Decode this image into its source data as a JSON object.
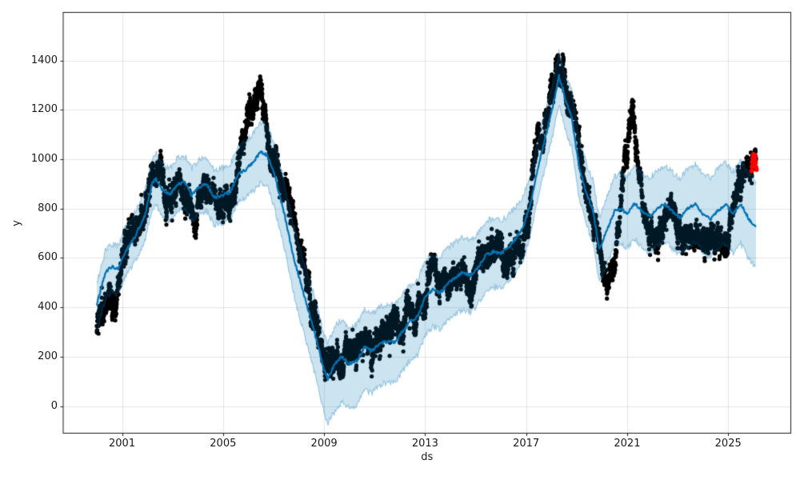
{
  "chart_data": {
    "type": "scatter",
    "title": "",
    "xlabel": "ds",
    "ylabel": "y",
    "grid": true,
    "legend": "none",
    "x_range": [
      1998.67,
      2027.48
    ],
    "y_range": [
      -110,
      1595
    ],
    "x_tick_values": [
      2001,
      2005,
      2009,
      2013,
      2017,
      2021,
      2025
    ],
    "x_tick_labels": [
      "2001",
      "2005",
      "2009",
      "2013",
      "2017",
      "2021",
      "2025"
    ],
    "y_tick_values": [
      0,
      200,
      400,
      600,
      800,
      1000,
      1200,
      1400
    ],
    "y_tick_labels": [
      "0",
      "200",
      "400",
      "600",
      "800",
      "1000",
      "1200",
      "1400"
    ],
    "colors": {
      "observations": "#000000",
      "forecast_line": "#0072B2",
      "uncertainty_band_fill": "rgba(0,114,178,0.2)",
      "uncertainty_band_edge": "rgba(0,114,178,0.32)",
      "recent_points": "#ff0000",
      "grid": "rgba(0,0,0,0.10)",
      "spine": "#1a1a1a",
      "tick": "#1a1a1a"
    },
    "series": [
      {
        "name": "history-observations",
        "type": "scatter",
        "color": "#000000",
        "marker_radius": 2.6,
        "x_start": 2000.0,
        "x_end": 2026.1,
        "points_per_year": 250,
        "seed": 1337,
        "walk_amplitude_slow": 46,
        "walk_amplitude_fast": 38,
        "jitter_sigma": 21,
        "center_keypoints": [
          [
            2000.0,
            330
          ],
          [
            2000.3,
            420
          ],
          [
            2000.5,
            470
          ],
          [
            2000.75,
            430
          ],
          [
            2001.0,
            600
          ],
          [
            2001.3,
            720
          ],
          [
            2001.6,
            750
          ],
          [
            2001.9,
            790
          ],
          [
            2002.2,
            930
          ],
          [
            2002.5,
            960
          ],
          [
            2002.75,
            800
          ],
          [
            2003.0,
            880
          ],
          [
            2003.3,
            940
          ],
          [
            2003.6,
            800
          ],
          [
            2003.9,
            730
          ],
          [
            2004.2,
            900
          ],
          [
            2004.5,
            930
          ],
          [
            2004.8,
            810
          ],
          [
            2005.1,
            840
          ],
          [
            2005.4,
            860
          ],
          [
            2005.7,
            1020
          ],
          [
            2006.0,
            1170
          ],
          [
            2006.3,
            1240
          ],
          [
            2006.5,
            1270
          ],
          [
            2006.8,
            1090
          ],
          [
            2007.1,
            980
          ],
          [
            2007.4,
            880
          ],
          [
            2007.7,
            790
          ],
          [
            2008.0,
            650
          ],
          [
            2008.3,
            480
          ],
          [
            2008.6,
            370
          ],
          [
            2008.9,
            240
          ],
          [
            2009.15,
            140
          ],
          [
            2009.45,
            190
          ],
          [
            2009.75,
            215
          ],
          [
            2010.05,
            195
          ],
          [
            2010.35,
            235
          ],
          [
            2010.65,
            255
          ],
          [
            2010.95,
            215
          ],
          [
            2011.25,
            295
          ],
          [
            2011.55,
            315
          ],
          [
            2011.85,
            335
          ],
          [
            2012.15,
            355
          ],
          [
            2012.45,
            395
          ],
          [
            2012.75,
            380
          ],
          [
            2013.05,
            470
          ],
          [
            2013.3,
            545
          ],
          [
            2013.6,
            515
          ],
          [
            2013.9,
            515
          ],
          [
            2014.2,
            535
          ],
          [
            2014.5,
            555
          ],
          [
            2014.8,
            515
          ],
          [
            2015.1,
            555
          ],
          [
            2015.4,
            625
          ],
          [
            2015.65,
            700
          ],
          [
            2015.9,
            635
          ],
          [
            2016.2,
            595
          ],
          [
            2016.5,
            615
          ],
          [
            2016.8,
            645
          ],
          [
            2017.05,
            710
          ],
          [
            2017.3,
            960
          ],
          [
            2017.5,
            1130
          ],
          [
            2017.7,
            1090
          ],
          [
            2017.9,
            1190
          ],
          [
            2018.1,
            1330
          ],
          [
            2018.25,
            1420
          ],
          [
            2018.45,
            1340
          ],
          [
            2018.65,
            1270
          ],
          [
            2018.85,
            1240
          ],
          [
            2019.05,
            1130
          ],
          [
            2019.3,
            900
          ],
          [
            2019.6,
            760
          ],
          [
            2019.9,
            660
          ],
          [
            2020.2,
            520
          ],
          [
            2020.45,
            560
          ],
          [
            2020.7,
            750
          ],
          [
            2020.9,
            960
          ],
          [
            2021.1,
            1120
          ],
          [
            2021.25,
            1190
          ],
          [
            2021.45,
            950
          ],
          [
            2021.65,
            800
          ],
          [
            2021.9,
            720
          ],
          [
            2022.2,
            700
          ],
          [
            2022.5,
            760
          ],
          [
            2022.8,
            800
          ],
          [
            2023.1,
            710
          ],
          [
            2023.4,
            660
          ],
          [
            2023.7,
            700
          ],
          [
            2024.0,
            690
          ],
          [
            2024.3,
            720
          ],
          [
            2024.6,
            660
          ],
          [
            2024.9,
            650
          ],
          [
            2025.1,
            730
          ],
          [
            2025.35,
            860
          ],
          [
            2025.6,
            940
          ],
          [
            2025.85,
            990
          ],
          [
            2026.05,
            990
          ]
        ]
      },
      {
        "name": "uncertainty-interval",
        "type": "band",
        "base_series": "forecast-yhat",
        "fill_color": "rgba(0,114,178,0.2)",
        "edge_color": "rgba(0,114,178,0.32)",
        "edge_noise_amplitude": 12,
        "seed_upper": 11,
        "seed_lower": 13,
        "offsets_keypoints": [
          [
            2000.0,
            85,
            115
          ],
          [
            2001.0,
            95,
            100
          ],
          [
            2002.5,
            105,
            105
          ],
          [
            2004.0,
            110,
            110
          ],
          [
            2006.0,
            115,
            115
          ],
          [
            2007.5,
            130,
            140
          ],
          [
            2009.0,
            145,
            175
          ],
          [
            2009.4,
            150,
            190
          ],
          [
            2010.5,
            150,
            175
          ],
          [
            2012.0,
            150,
            160
          ],
          [
            2013.5,
            145,
            150
          ],
          [
            2015.0,
            140,
            150
          ],
          [
            2016.5,
            130,
            135
          ],
          [
            2017.5,
            115,
            125
          ],
          [
            2018.3,
            95,
            115
          ],
          [
            2019.0,
            115,
            125
          ],
          [
            2020.0,
            130,
            135
          ],
          [
            2021.0,
            150,
            140
          ],
          [
            2022.0,
            155,
            150
          ],
          [
            2023.0,
            160,
            150
          ],
          [
            2024.0,
            165,
            155
          ],
          [
            2025.0,
            170,
            160
          ],
          [
            2026.1,
            185,
            165
          ]
        ]
      },
      {
        "name": "forecast-yhat",
        "type": "line",
        "color": "#0072B2",
        "width": 2.2,
        "wiggle_amplitude": 6,
        "seed": 7,
        "keypoints": [
          [
            2000.0,
            410
          ],
          [
            2000.35,
            545
          ],
          [
            2000.6,
            565
          ],
          [
            2000.85,
            555
          ],
          [
            2001.1,
            620
          ],
          [
            2001.5,
            685
          ],
          [
            2001.9,
            770
          ],
          [
            2002.2,
            905
          ],
          [
            2002.35,
            920
          ],
          [
            2002.6,
            875
          ],
          [
            2002.9,
            858
          ],
          [
            2003.2,
            900
          ],
          [
            2003.5,
            905
          ],
          [
            2003.75,
            855
          ],
          [
            2004.05,
            888
          ],
          [
            2004.35,
            900
          ],
          [
            2004.65,
            845
          ],
          [
            2005.0,
            855
          ],
          [
            2005.3,
            868
          ],
          [
            2005.6,
            940
          ],
          [
            2005.9,
            958
          ],
          [
            2006.2,
            990
          ],
          [
            2006.5,
            1030
          ],
          [
            2006.75,
            1015
          ],
          [
            2007.0,
            950
          ],
          [
            2007.4,
            790
          ],
          [
            2007.8,
            600
          ],
          [
            2008.2,
            450
          ],
          [
            2008.6,
            310
          ],
          [
            2009.0,
            145
          ],
          [
            2009.15,
            110
          ],
          [
            2009.45,
            175
          ],
          [
            2009.7,
            200
          ],
          [
            2010.0,
            172
          ],
          [
            2010.3,
            182
          ],
          [
            2010.6,
            238
          ],
          [
            2010.9,
            225
          ],
          [
            2011.2,
            252
          ],
          [
            2011.5,
            262
          ],
          [
            2011.8,
            258
          ],
          [
            2012.1,
            300
          ],
          [
            2012.4,
            342
          ],
          [
            2012.7,
            362
          ],
          [
            2013.0,
            440
          ],
          [
            2013.3,
            472
          ],
          [
            2013.6,
            458
          ],
          [
            2013.9,
            498
          ],
          [
            2014.2,
            520
          ],
          [
            2014.5,
            542
          ],
          [
            2014.8,
            528
          ],
          [
            2015.1,
            562
          ],
          [
            2015.4,
            612
          ],
          [
            2015.7,
            625
          ],
          [
            2016.0,
            618
          ],
          [
            2016.3,
            642
          ],
          [
            2016.6,
            680
          ],
          [
            2016.9,
            728
          ],
          [
            2017.2,
            830
          ],
          [
            2017.5,
            980
          ],
          [
            2017.8,
            1105
          ],
          [
            2018.05,
            1210
          ],
          [
            2018.3,
            1338
          ],
          [
            2018.55,
            1240
          ],
          [
            2018.8,
            1170
          ],
          [
            2019.1,
            965
          ],
          [
            2019.4,
            860
          ],
          [
            2019.65,
            790
          ],
          [
            2019.9,
            635
          ],
          [
            2020.15,
            700
          ],
          [
            2020.5,
            790
          ],
          [
            2020.75,
            800
          ],
          [
            2021.0,
            778
          ],
          [
            2021.3,
            822
          ],
          [
            2021.6,
            788
          ],
          [
            2021.9,
            768
          ],
          [
            2022.2,
            802
          ],
          [
            2022.5,
            818
          ],
          [
            2022.8,
            788
          ],
          [
            2023.1,
            762
          ],
          [
            2023.4,
            800
          ],
          [
            2023.7,
            818
          ],
          [
            2024.0,
            778
          ],
          [
            2024.3,
            758
          ],
          [
            2024.6,
            792
          ],
          [
            2024.9,
            818
          ],
          [
            2025.2,
            778
          ],
          [
            2025.5,
            820
          ],
          [
            2025.8,
            762
          ],
          [
            2026.1,
            722
          ]
        ]
      },
      {
        "name": "recent-highlight",
        "type": "scatter",
        "color": "#ff0000",
        "marker_radius": 3.0,
        "points": [
          [
            2025.93,
            952
          ],
          [
            2025.95,
            970
          ],
          [
            2025.96,
            988
          ],
          [
            2025.98,
            1005
          ],
          [
            2026.0,
            996
          ],
          [
            2026.0,
            1020
          ],
          [
            2026.02,
            978
          ],
          [
            2026.04,
            1012
          ],
          [
            2026.05,
            992
          ],
          [
            2026.06,
            1000
          ],
          [
            2026.07,
            1015
          ],
          [
            2026.08,
            985
          ],
          [
            2026.1,
            968
          ],
          [
            2026.12,
            958
          ]
        ]
      }
    ]
  }
}
